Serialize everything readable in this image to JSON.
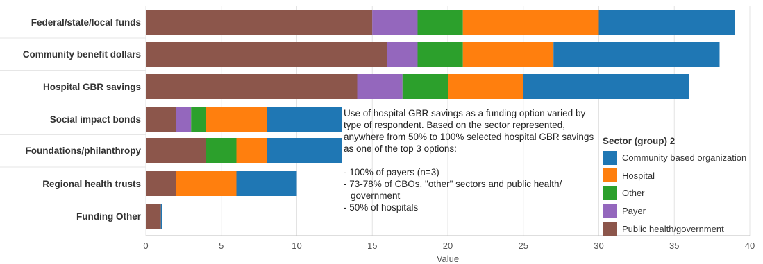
{
  "chart_data": {
    "type": "bar",
    "orientation": "horizontal",
    "stacked": true,
    "categories": [
      "Federal/state/local funds",
      "Community benefit dollars",
      "Hospital GBR savings",
      "Social impact bonds",
      "Foundations/philanthropy",
      "Regional health trusts",
      "Funding Other"
    ],
    "series": [
      {
        "name": "Public health/government",
        "color": "#8c564b",
        "values": [
          15,
          16,
          14,
          2,
          4,
          2,
          1
        ]
      },
      {
        "name": "Payer",
        "color": "#9467bd",
        "values": [
          3,
          2,
          3,
          1,
          0,
          0,
          0
        ]
      },
      {
        "name": "Other",
        "color": "#2ca02c",
        "values": [
          3,
          3,
          3,
          1,
          2,
          0,
          0
        ]
      },
      {
        "name": "Hospital",
        "color": "#ff7f0e",
        "values": [
          9,
          6,
          5,
          4,
          2,
          4,
          0
        ]
      },
      {
        "name": "Community based organization",
        "color": "#1f77b4",
        "values": [
          9,
          11,
          11,
          5,
          5,
          4,
          0.1
        ]
      }
    ],
    "legend_order": [
      4,
      3,
      2,
      1,
      0
    ],
    "xlabel": "Value",
    "ylabel": "",
    "xlim": [
      0,
      40
    ],
    "xticks": [
      0,
      5,
      10,
      15,
      20,
      25,
      30,
      35,
      40
    ],
    "grid": "vertical",
    "legend": {
      "title": "Sector (group) 2",
      "placement": "right"
    }
  },
  "annotation": {
    "intro": "Use of hospital GBR savings as a funding option varied by type of respondent.  Based on the sector represented, anywhere from 50% to 100% selected hospital GBR savings as one of the top 3 options:",
    "bullets": [
      "- 100% of payers (n=3)",
      "- 73-78% of CBOs, \"other\" sectors and public health/ government",
      "- 50% of hospitals"
    ]
  }
}
